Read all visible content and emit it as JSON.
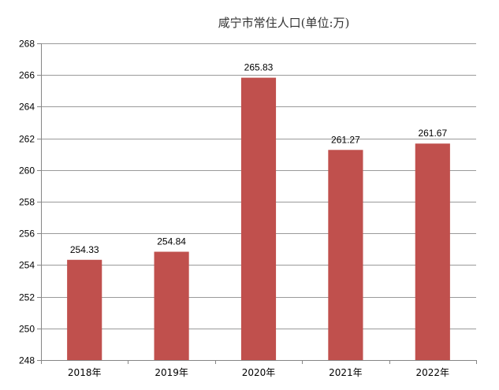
{
  "chart_data": {
    "type": "bar",
    "title": "咸宁市常住人口(单位:万)",
    "categories": [
      "2018年",
      "2019年",
      "2020年",
      "2021年",
      "2022年"
    ],
    "values": [
      254.33,
      254.84,
      265.83,
      261.27,
      261.67
    ],
    "data_labels": [
      "254.33",
      "254.84",
      "265.83",
      "261.27",
      "261.67"
    ],
    "ylim": [
      248,
      268
    ],
    "yticks": [
      248,
      250,
      252,
      254,
      256,
      258,
      260,
      262,
      264,
      266,
      268
    ],
    "grid": true,
    "legend": "none",
    "bar_color": "#C0504D"
  }
}
